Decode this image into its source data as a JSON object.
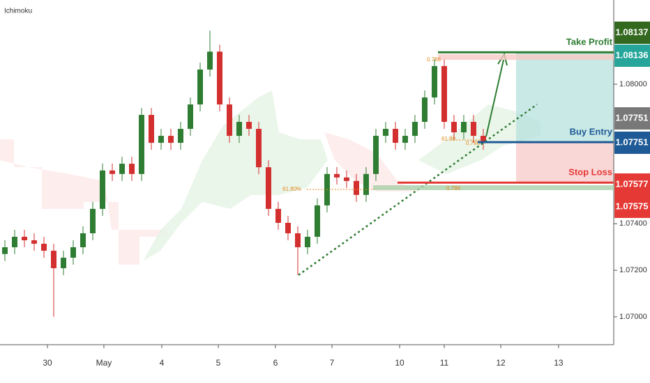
{
  "chart_data": {
    "type": "candlestick",
    "title": "Ichimoku",
    "open": [
      1.0727,
      1.07299,
      1.07344,
      1.07329,
      1.07314,
      1.07284,
      1.07209,
      1.07254,
      1.07299,
      1.07359,
      1.07464,
      1.07629,
      1.07614,
      1.07658,
      1.07614,
      1.07868,
      1.07748,
      1.07778,
      1.07748,
      1.07808,
      1.07913,
      1.08063,
      1.0814,
      1.07913,
      1.07778,
      1.07838,
      1.07808,
      1.07643,
      1.07464,
      1.07404,
      1.07359,
      1.07299,
      1.07344,
      1.07479,
      1.07614,
      1.07599,
      1.07584,
      1.07524,
      1.07614,
      1.07778,
      1.07808,
      1.07748,
      1.07778,
      1.07838,
      1.07943,
      1.08078,
      1.07838,
      1.07793,
      1.07838,
      1.07778
    ],
    "high": [
      1.07329,
      1.07374,
      1.07374,
      1.07359,
      1.07344,
      1.07314,
      1.07284,
      1.07329,
      1.07389,
      1.07494,
      1.07659,
      1.07659,
      1.07688,
      1.07688,
      1.07898,
      1.07898,
      1.07808,
      1.07808,
      1.07838,
      1.07943,
      1.08093,
      1.0823,
      1.0817,
      1.07943,
      1.07868,
      1.07868,
      1.07838,
      1.07673,
      1.07494,
      1.07434,
      1.07389,
      1.07374,
      1.07509,
      1.07644,
      1.07644,
      1.07629,
      1.07614,
      1.07644,
      1.07808,
      1.07838,
      1.07838,
      1.07808,
      1.07868,
      1.07973,
      1.08108,
      1.08108,
      1.07868,
      1.07868,
      1.07868,
      1.07808
    ],
    "low": [
      1.0724,
      1.07269,
      1.07299,
      1.07284,
      1.07254,
      1.07,
      1.07179,
      1.07224,
      1.07269,
      1.07329,
      1.07434,
      1.07584,
      1.07584,
      1.07584,
      1.07584,
      1.07718,
      1.07718,
      1.07718,
      1.07718,
      1.07778,
      1.07883,
      1.08033,
      1.07883,
      1.07748,
      1.07748,
      1.07778,
      1.07613,
      1.07434,
      1.07374,
      1.07329,
      1.0718,
      1.07269,
      1.07314,
      1.07449,
      1.07569,
      1.07554,
      1.07494,
      1.07494,
      1.07584,
      1.07748,
      1.07718,
      1.07718,
      1.07748,
      1.07808,
      1.07913,
      1.07808,
      1.07763,
      1.07763,
      1.07748,
      1.07718
    ],
    "close": [
      1.07299,
      1.07344,
      1.07329,
      1.07314,
      1.07284,
      1.07209,
      1.07254,
      1.07299,
      1.07359,
      1.07464,
      1.07629,
      1.07614,
      1.07658,
      1.07614,
      1.07868,
      1.07748,
      1.07778,
      1.07748,
      1.07808,
      1.07913,
      1.08063,
      1.0814,
      1.07913,
      1.07778,
      1.07838,
      1.07808,
      1.07643,
      1.07464,
      1.07404,
      1.07359,
      1.07299,
      1.07344,
      1.07479,
      1.07614,
      1.07599,
      1.07584,
      1.07524,
      1.07614,
      1.07778,
      1.07808,
      1.07748,
      1.07778,
      1.07838,
      1.07943,
      1.08078,
      1.07838,
      1.07793,
      1.07838,
      1.07778,
      1.07748
    ],
    "up_color": "#2e7d32",
    "down_color": "#d32f2f",
    "xlim": [
      -0.5,
      62.36
    ],
    "xticks": [
      {
        "value": 4.36,
        "label": "30"
      },
      {
        "value": 10.14,
        "label": "May"
      },
      {
        "value": 16.07,
        "label": "4"
      },
      {
        "value": 21.86,
        "label": "5"
      },
      {
        "value": 27.71,
        "label": "6"
      },
      {
        "value": 33.5,
        "label": "7"
      },
      {
        "value": 40.43,
        "label": "10"
      },
      {
        "value": 45,
        "label": "11"
      },
      {
        "value": 50.79,
        "label": "12"
      },
      {
        "value": 56.71,
        "label": "13"
      }
    ],
    "ylim": [
      1.0688,
      1.08362
    ],
    "yticks": [
      {
        "value": 1.07,
        "label": "1.07000"
      },
      {
        "value": 1.072,
        "label": "1.07200"
      },
      {
        "value": 1.074,
        "label": "1.07400"
      },
      {
        "value": 1.08,
        "label": "1.08000"
      }
    ],
    "levels": [
      {
        "name": "Take Profit",
        "value": 1.08137,
        "color": "#2e7d32"
      },
      {
        "name": "Buy Entry",
        "value": 1.07751,
        "color": "#1e5a96"
      },
      {
        "name": "Stop Loss",
        "value": 1.07577,
        "color": "#e53935"
      }
    ],
    "price_tags": [
      {
        "value": 1.08137,
        "color": "#33691e"
      },
      {
        "value": 1.08136,
        "color": "#26a69a"
      },
      {
        "value": 1.07751,
        "color": "#787878"
      },
      {
        "value": 1.07751,
        "color": "#1e5a96"
      },
      {
        "value": 1.07577,
        "color": "#e53935"
      },
      {
        "value": 1.07575,
        "color": "#e53935"
      }
    ],
    "annotations": [
      "0.786",
      "61.80%",
      "61.80",
      "0.786",
      "0.786"
    ]
  }
}
